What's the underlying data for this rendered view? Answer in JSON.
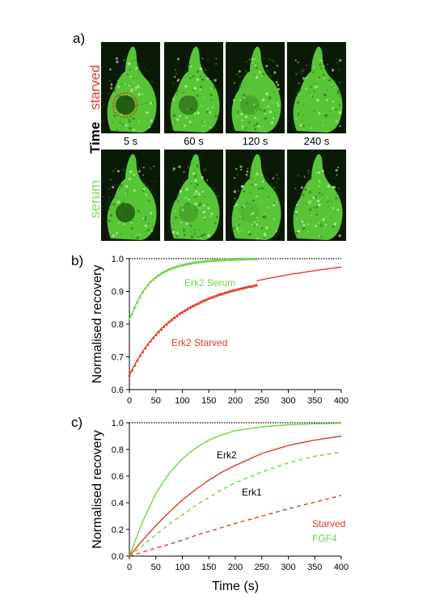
{
  "panels": {
    "a": "a)",
    "b": "b)",
    "c": "c)"
  },
  "panel_a": {
    "row_labels": {
      "starved": "starved",
      "serum": "serum",
      "time": "Time"
    },
    "time_labels": [
      "5 s",
      "60 s",
      "120 s",
      "240 s"
    ],
    "colors": {
      "starved": "#e53a2a",
      "serum": "#7ed957",
      "cell": "#5fd83c"
    },
    "nucleus_dark_level": {
      "starved": [
        0.85,
        0.55,
        0.25,
        0.0
      ],
      "serum": [
        0.75,
        0.25,
        0.1,
        0.0
      ]
    }
  },
  "chart_data": [
    {
      "type": "line",
      "ylabel": "Normalised recovery",
      "xlim": [
        0,
        400
      ],
      "ylim": [
        0.6,
        1.0
      ],
      "x_ticks": [
        "0",
        "50",
        "100",
        "150",
        "200",
        "250",
        "300",
        "350",
        "400"
      ],
      "y_ticks": [
        "0.6",
        "0.7",
        "0.8",
        "0.9",
        "1.0"
      ],
      "reference_line": 1.0,
      "annotations": [
        "Erk2 Serum",
        "Erk2 Starved"
      ],
      "series": [
        {
          "name": "Erk2 Serum",
          "color": "#72d24a",
          "markers": true,
          "x": [
            0,
            5,
            10,
            15,
            20,
            25,
            30,
            35,
            40,
            45,
            50,
            55,
            60,
            65,
            70,
            75,
            80,
            85,
            90,
            95,
            100,
            105,
            110,
            115,
            120,
            125,
            130,
            135,
            140,
            145,
            150,
            155,
            160,
            165,
            170,
            175,
            180,
            185,
            190,
            195,
            200,
            205,
            210,
            215,
            220,
            225,
            230,
            235,
            240
          ],
          "y": [
            0.815,
            0.832,
            0.852,
            0.868,
            0.884,
            0.898,
            0.91,
            0.92,
            0.93,
            0.937,
            0.944,
            0.95,
            0.955,
            0.96,
            0.964,
            0.968,
            0.971,
            0.974,
            0.977,
            0.979,
            0.981,
            0.983,
            0.985,
            0.986,
            0.988,
            0.989,
            0.99,
            0.991,
            0.992,
            0.993,
            0.994,
            0.994,
            0.995,
            0.996,
            0.996,
            0.997,
            0.997,
            0.998,
            0.998,
            0.998,
            0.999,
            0.999,
            0.999,
            0.999,
            1.0,
            1.0,
            1.0,
            1.0,
            1.0
          ]
        },
        {
          "name": "Erk2 Starved",
          "color": "#e8382a",
          "markers": true,
          "x": [
            0,
            5,
            10,
            15,
            20,
            25,
            30,
            35,
            40,
            45,
            50,
            55,
            60,
            65,
            70,
            75,
            80,
            85,
            90,
            95,
            100,
            105,
            110,
            115,
            120,
            125,
            130,
            135,
            140,
            145,
            150,
            155,
            160,
            165,
            170,
            175,
            180,
            185,
            190,
            195,
            200,
            205,
            210,
            215,
            220,
            225,
            230,
            235,
            240
          ],
          "y": [
            0.645,
            0.66,
            0.675,
            0.69,
            0.704,
            0.716,
            0.728,
            0.739,
            0.749,
            0.759,
            0.768,
            0.777,
            0.785,
            0.793,
            0.8,
            0.807,
            0.814,
            0.82,
            0.826,
            0.832,
            0.837,
            0.842,
            0.847,
            0.852,
            0.856,
            0.86,
            0.864,
            0.868,
            0.872,
            0.875,
            0.879,
            0.882,
            0.885,
            0.888,
            0.891,
            0.893,
            0.896,
            0.898,
            0.901,
            0.903,
            0.905,
            0.907,
            0.909,
            0.911,
            0.913,
            0.915,
            0.916,
            0.918,
            0.92
          ]
        },
        {
          "name": "",
          "color": "#e8382a",
          "markers": false,
          "x": [
            240,
            260,
            280,
            300,
            320,
            340,
            360,
            380,
            400
          ],
          "y": [
            0.932,
            0.939,
            0.945,
            0.951,
            0.956,
            0.961,
            0.966,
            0.97,
            0.974
          ]
        }
      ]
    },
    {
      "type": "line",
      "xlabel": "Time (s)",
      "ylabel": "Normalised recovery",
      "xlim": [
        0,
        400
      ],
      "ylim": [
        0.0,
        1.0
      ],
      "x_ticks": [
        "0",
        "50",
        "100",
        "150",
        "200",
        "250",
        "300",
        "350",
        "400"
      ],
      "y_ticks": [
        "0.0",
        "0.2",
        "0.4",
        "0.6",
        "0.8",
        "1.0"
      ],
      "reference_line": 1.0,
      "annotations": [
        "Erk2",
        "Erk1"
      ],
      "legend": [
        {
          "name": "Starved",
          "color": "#e8382a"
        },
        {
          "name": "FGF4",
          "color": "#72d24a"
        }
      ],
      "series": [
        {
          "name": "",
          "color": "#72d24a",
          "dashed": false,
          "x": [
            0,
            25,
            50,
            75,
            100,
            125,
            150,
            175,
            200,
            250,
            300,
            350,
            400
          ],
          "y": [
            0.0,
            0.26,
            0.47,
            0.62,
            0.73,
            0.81,
            0.87,
            0.91,
            0.94,
            0.97,
            0.985,
            0.992,
            0.996
          ]
        },
        {
          "name": "",
          "color": "#e8382a",
          "dashed": false,
          "x": [
            0,
            25,
            50,
            75,
            100,
            125,
            150,
            175,
            200,
            250,
            300,
            350,
            400
          ],
          "y": [
            0.0,
            0.12,
            0.23,
            0.33,
            0.42,
            0.5,
            0.57,
            0.63,
            0.68,
            0.77,
            0.83,
            0.87,
            0.9
          ]
        },
        {
          "name": "",
          "color": "#72d24a",
          "dashed": true,
          "x": [
            0,
            25,
            50,
            75,
            100,
            125,
            150,
            175,
            200,
            250,
            300,
            350,
            400
          ],
          "y": [
            0.0,
            0.08,
            0.16,
            0.24,
            0.31,
            0.38,
            0.44,
            0.5,
            0.55,
            0.63,
            0.7,
            0.75,
            0.78
          ]
        },
        {
          "name": "",
          "color": "#e8382a",
          "dashed": true,
          "x": [
            0,
            25,
            50,
            75,
            100,
            125,
            150,
            175,
            200,
            250,
            300,
            350,
            400
          ],
          "y": [
            0.0,
            0.03,
            0.06,
            0.09,
            0.12,
            0.155,
            0.185,
            0.215,
            0.245,
            0.3,
            0.355,
            0.405,
            0.455
          ]
        }
      ]
    }
  ]
}
